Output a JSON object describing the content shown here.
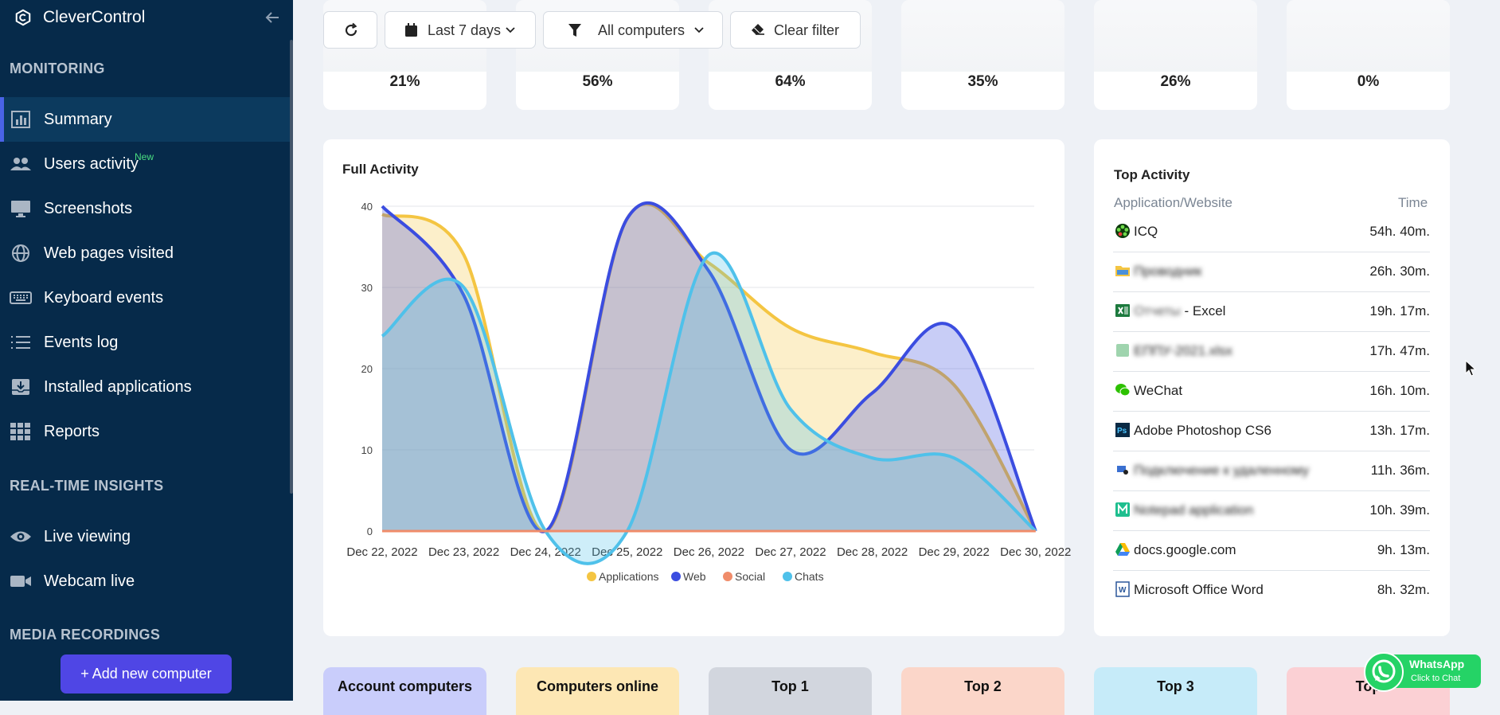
{
  "app": {
    "name": "CleverControl"
  },
  "sidebar": {
    "sections": {
      "monitoring": "MONITORING",
      "realtime": "REAL-TIME INSIGHTS",
      "media": "MEDIA RECORDINGS"
    },
    "items": [
      {
        "label": "Summary",
        "icon": "bar-chart-icon"
      },
      {
        "label": "Users activity",
        "badge": "New",
        "icon": "users-icon"
      },
      {
        "label": "Screenshots",
        "icon": "monitor-icon"
      },
      {
        "label": "Web pages visited",
        "icon": "globe-icon"
      },
      {
        "label": "Keyboard events",
        "icon": "keyboard-icon"
      },
      {
        "label": "Events log",
        "icon": "list-icon"
      },
      {
        "label": "Installed applications",
        "icon": "install-icon"
      },
      {
        "label": "Reports",
        "icon": "grid-icon"
      },
      {
        "label": "Live viewing",
        "icon": "eye-icon"
      },
      {
        "label": "Webcam live",
        "icon": "video-icon"
      }
    ],
    "add_button": "+ Add new computer"
  },
  "toolbar": {
    "period": "Last 7 days",
    "computers": "All computers",
    "clear": "Clear filter"
  },
  "stats": [
    "21%",
    "56%",
    "64%",
    "35%",
    "26%",
    "0%"
  ],
  "full_activity": {
    "title": "Full Activity"
  },
  "chart_data": {
    "type": "area",
    "title": "Full Activity",
    "x": [
      "Dec 22, 2022",
      "Dec 23, 2022",
      "Dec 24, 2022",
      "Dec 25, 2022",
      "Dec 26, 2022",
      "Dec 27, 2022",
      "Dec 28, 2022",
      "Dec 29, 2022",
      "Dec 30, 2022"
    ],
    "ylim": [
      0,
      40
    ],
    "yticks": [
      0,
      10,
      20,
      30,
      40
    ],
    "legend_position": "bottom-center",
    "series": [
      {
        "name": "Applications",
        "color": "#f4c542",
        "values": [
          39,
          34,
          0,
          38.5,
          33,
          25,
          22,
          18,
          0
        ]
      },
      {
        "name": "Web",
        "color": "#3b4de0",
        "values": [
          40,
          29,
          0,
          38.5,
          32,
          10,
          17,
          25,
          0
        ]
      },
      {
        "name": "Social",
        "color": "#f08c6a",
        "values": [
          0,
          0,
          0,
          0,
          0,
          0,
          0,
          0,
          0
        ]
      },
      {
        "name": "Chats",
        "color": "#4fc1ea",
        "values": [
          24,
          30,
          0,
          0,
          34,
          15,
          9,
          9,
          0
        ]
      }
    ]
  },
  "top_activity": {
    "title": "Top Activity",
    "col_app": "Application/Website",
    "col_time": "Time",
    "rows": [
      {
        "name": "ICQ",
        "time": "54h. 40m.",
        "icon": "icq-icon",
        "blurred": false
      },
      {
        "name": "Проводник",
        "time": "26h. 30m.",
        "icon": "folder-icon",
        "blurred": true
      },
      {
        "name": "Отчеты",
        "suffix": " - Excel",
        "time": "19h. 17m.",
        "icon": "excel-icon",
        "blurred": true
      },
      {
        "name": "ЕППУ-2021.xlsx",
        "time": "17h. 47m.",
        "icon": "app-icon",
        "blurred": true
      },
      {
        "name": "WeChat",
        "time": "16h. 10m.",
        "icon": "wechat-icon",
        "blurred": false
      },
      {
        "name": "Adobe Photoshop CS6",
        "time": "13h. 17m.",
        "icon": "photoshop-icon",
        "blurred": false
      },
      {
        "name": "Подключение к удаленному",
        "time": "11h. 36m.",
        "icon": "remote-desktop-icon",
        "blurred": true
      },
      {
        "name": "Notepad application",
        "time": "10h. 39m.",
        "icon": "notepad-icon",
        "blurred": true
      },
      {
        "name": "docs.google.com",
        "time": "9h. 13m.",
        "icon": "google-drive-icon",
        "blurred": false
      },
      {
        "name": "Microsoft Office Word",
        "time": "8h. 32m.",
        "icon": "word-icon",
        "blurred": false
      }
    ]
  },
  "tiles": [
    {
      "label": "Account computers",
      "color": "#c9cdfb"
    },
    {
      "label": "Computers online",
      "color": "#fde7b4"
    },
    {
      "label": "Top 1",
      "color": "#d2d6de"
    },
    {
      "label": "Top 2",
      "color": "#fbd6c9"
    },
    {
      "label": "Top 3",
      "color": "#c6ebf9"
    },
    {
      "label": "Top",
      "color": "#fbd0d4"
    }
  ],
  "whatsapp": {
    "title": "WhatsApp",
    "subtitle": "Click to Chat"
  }
}
